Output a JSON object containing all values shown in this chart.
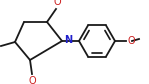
{
  "bg_color": "#ffffff",
  "atom_color": "#1a1a1a",
  "n_color": "#2020cc",
  "o_color": "#cc2020",
  "cl_color": "#208020",
  "line_color": "#1a1a1a",
  "bond_lw": 1.3,
  "font_size": 7.0,
  "figsize": [
    1.49,
    0.84
  ],
  "dpi": 100,
  "xlim": [
    0,
    149
  ],
  "ylim": [
    0,
    84
  ]
}
